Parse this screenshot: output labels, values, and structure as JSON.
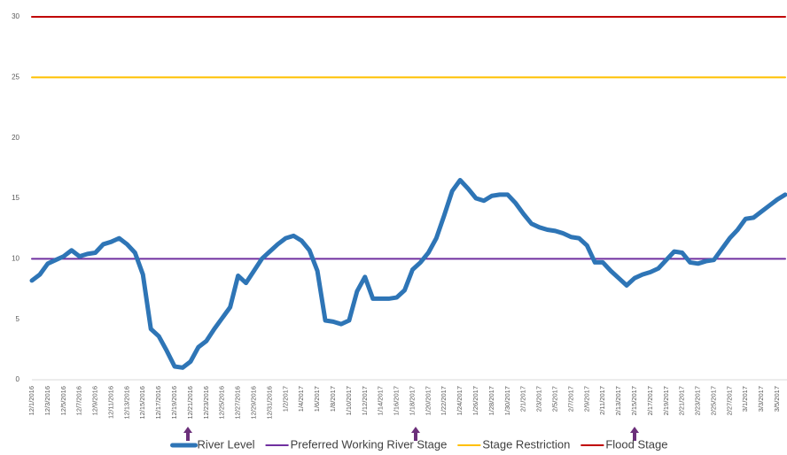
{
  "chart_data": {
    "type": "line",
    "categories": [
      "12/1/2016",
      null,
      "12/3/2016",
      null,
      "12/5/2016",
      null,
      "12/7/2016",
      null,
      "12/9/2016",
      null,
      "12/11/2016",
      null,
      "12/13/2016",
      null,
      "12/15/2016",
      null,
      "12/17/2016",
      null,
      "12/19/2016",
      null,
      "12/21/2016",
      null,
      "12/23/2016",
      null,
      "12/25/2016",
      null,
      "12/27/2016",
      null,
      "12/29/2016",
      null,
      "12/31/2016",
      null,
      "1/2/2017",
      null,
      "1/4/2017",
      null,
      "1/6/2017",
      null,
      "1/8/2017",
      null,
      "1/10/2017",
      null,
      "1/12/2017",
      null,
      "1/14/2017",
      null,
      "1/16/2017",
      null,
      "1/18/2017",
      null,
      "1/20/2017",
      null,
      "1/22/2017",
      null,
      "1/24/2017",
      null,
      "1/26/2017",
      null,
      "1/28/2017",
      null,
      "1/30/2017",
      null,
      "2/1/2017",
      null,
      "2/3/2017",
      null,
      "2/5/2017",
      null,
      "2/7/2017",
      null,
      "2/9/2017",
      null,
      "2/11/2017",
      null,
      "2/13/2017",
      null,
      "2/15/2017",
      null,
      "2/17/2017",
      null,
      "2/19/2017",
      null,
      "2/21/2017",
      null,
      "2/23/2017",
      null,
      "2/25/2017",
      null,
      "2/27/2017",
      null,
      "3/1/2017",
      null,
      "3/3/2017",
      null,
      "3/5/2017",
      null
    ],
    "series": [
      {
        "name": "River Level",
        "color": "#2e75b6",
        "values": [
          8.2,
          8.7,
          9.6,
          9.9,
          10.2,
          10.7,
          10.2,
          10.4,
          10.5,
          11.2,
          11.4,
          11.7,
          11.2,
          10.5,
          8.7,
          4.2,
          3.6,
          2.4,
          1.1,
          1.0,
          1.5,
          2.7,
          3.2,
          4.2,
          5.1,
          6.0,
          8.6,
          8.0,
          9.0,
          10.0,
          10.6,
          11.2,
          11.7,
          11.9,
          11.5,
          10.7,
          9.0,
          4.9,
          4.8,
          4.6,
          4.9,
          7.3,
          8.5,
          6.7,
          6.7,
          6.7,
          6.8,
          7.4,
          9.1,
          9.7,
          10.5,
          11.7,
          13.6,
          15.6,
          16.5,
          15.8,
          15.0,
          14.8,
          15.2,
          15.3,
          15.3,
          14.6,
          13.7,
          12.9,
          12.6,
          12.4,
          12.3,
          12.1,
          11.8,
          11.7,
          11.1,
          9.7,
          9.7,
          9.0,
          8.4,
          7.8,
          8.4,
          8.7,
          8.9,
          9.2,
          9.9,
          10.6,
          10.5,
          9.7,
          9.6,
          9.8,
          9.9,
          10.8,
          11.7,
          12.4,
          13.3,
          13.4,
          13.9,
          14.4,
          14.9,
          15.3
        ]
      },
      {
        "name": "Preferred Working River Stage",
        "color": "#7030a0",
        "values": [
          10,
          10,
          10,
          10,
          10,
          10,
          10,
          10,
          10,
          10,
          10,
          10,
          10,
          10,
          10,
          10,
          10,
          10,
          10,
          10,
          10,
          10,
          10,
          10,
          10,
          10,
          10,
          10,
          10,
          10,
          10,
          10,
          10,
          10,
          10,
          10,
          10,
          10,
          10,
          10,
          10,
          10,
          10,
          10,
          10,
          10,
          10,
          10,
          10,
          10,
          10,
          10,
          10,
          10,
          10,
          10,
          10,
          10,
          10,
          10,
          10,
          10,
          10,
          10,
          10,
          10,
          10,
          10,
          10,
          10,
          10,
          10,
          10,
          10,
          10,
          10,
          10,
          10,
          10,
          10,
          10,
          10,
          10,
          10,
          10,
          10,
          10,
          10,
          10,
          10,
          10,
          10,
          10,
          10,
          10,
          10
        ]
      },
      {
        "name": "Stage Restriction",
        "color": "#ffc000",
        "values": [
          25,
          25,
          25,
          25,
          25,
          25,
          25,
          25,
          25,
          25,
          25,
          25,
          25,
          25,
          25,
          25,
          25,
          25,
          25,
          25,
          25,
          25,
          25,
          25,
          25,
          25,
          25,
          25,
          25,
          25,
          25,
          25,
          25,
          25,
          25,
          25,
          25,
          25,
          25,
          25,
          25,
          25,
          25,
          25,
          25,
          25,
          25,
          25,
          25,
          25,
          25,
          25,
          25,
          25,
          25,
          25,
          25,
          25,
          25,
          25,
          25,
          25,
          25,
          25,
          25,
          25,
          25,
          25,
          25,
          25,
          25,
          25,
          25,
          25,
          25,
          25,
          25,
          25,
          25,
          25,
          25,
          25,
          25,
          25,
          25,
          25,
          25,
          25,
          25,
          25,
          25,
          25,
          25,
          25,
          25,
          25
        ]
      },
      {
        "name": "Flood Stage",
        "color": "#c00000",
        "values": [
          30,
          30,
          30,
          30,
          30,
          30,
          30,
          30,
          30,
          30,
          30,
          30,
          30,
          30,
          30,
          30,
          30,
          30,
          30,
          30,
          30,
          30,
          30,
          30,
          30,
          30,
          30,
          30,
          30,
          30,
          30,
          30,
          30,
          30,
          30,
          30,
          30,
          30,
          30,
          30,
          30,
          30,
          30,
          30,
          30,
          30,
          30,
          30,
          30,
          30,
          30,
          30,
          30,
          30,
          30,
          30,
          30,
          30,
          30,
          30,
          30,
          30,
          30,
          30,
          30,
          30,
          30,
          30,
          30,
          30,
          30,
          30,
          30,
          30,
          30,
          30,
          30,
          30,
          30,
          30,
          30,
          30,
          30,
          30,
          30,
          30,
          30,
          30,
          30,
          30,
          30,
          30,
          30,
          30,
          30,
          30
        ]
      }
    ],
    "ylim": [
      0,
      30
    ],
    "yticks": [
      0,
      5,
      10,
      15,
      20,
      25,
      30
    ],
    "legend": "bottom"
  }
}
